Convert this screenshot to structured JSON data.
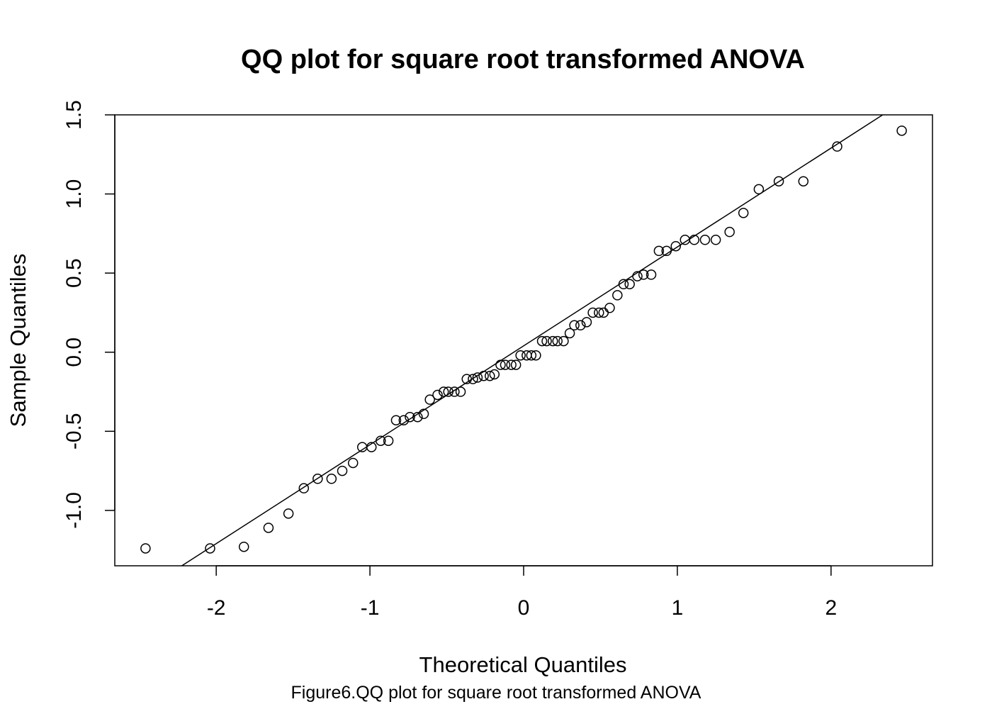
{
  "chart_data": {
    "type": "scatter",
    "title": "QQ plot for square root transformed ANOVA",
    "xlabel": "Theoretical Quantiles",
    "ylabel": "Sample Quantiles",
    "xlim": [
      -2.66,
      2.66
    ],
    "ylim": [
      -1.35,
      1.5
    ],
    "x_ticks": [
      -2,
      -1,
      0,
      1,
      2
    ],
    "x_tick_labels": [
      "-2",
      "-1",
      "0",
      "1",
      "2"
    ],
    "y_ticks": [
      -1.0,
      -0.5,
      0.0,
      0.5,
      1.0,
      1.5
    ],
    "y_tick_labels": [
      "-1.0",
      "-0.5",
      "0.0",
      "0.5",
      "1.0",
      "1.5"
    ],
    "grid": false,
    "legend": "none",
    "reference_line": {
      "slope": 0.625,
      "intercept": 0.04
    },
    "points": [
      [
        -2.46,
        -1.24
      ],
      [
        -2.04,
        -1.24
      ],
      [
        -1.82,
        -1.23
      ],
      [
        -1.66,
        -1.11
      ],
      [
        -1.53,
        -1.02
      ],
      [
        -1.43,
        -0.86
      ],
      [
        -1.34,
        -0.8
      ],
      [
        -1.25,
        -0.8
      ],
      [
        -1.18,
        -0.75
      ],
      [
        -1.11,
        -0.7
      ],
      [
        -1.05,
        -0.6
      ],
      [
        -0.99,
        -0.6
      ],
      [
        -0.93,
        -0.56
      ],
      [
        -0.88,
        -0.56
      ],
      [
        -0.83,
        -0.43
      ],
      [
        -0.78,
        -0.43
      ],
      [
        -0.74,
        -0.41
      ],
      [
        -0.69,
        -0.41
      ],
      [
        -0.65,
        -0.39
      ],
      [
        -0.61,
        -0.3
      ],
      [
        -0.56,
        -0.27
      ],
      [
        -0.52,
        -0.25
      ],
      [
        -0.49,
        -0.25
      ],
      [
        -0.45,
        -0.25
      ],
      [
        -0.41,
        -0.25
      ],
      [
        -0.37,
        -0.17
      ],
      [
        -0.33,
        -0.17
      ],
      [
        -0.3,
        -0.16
      ],
      [
        -0.26,
        -0.15
      ],
      [
        -0.22,
        -0.15
      ],
      [
        -0.19,
        -0.14
      ],
      [
        -0.15,
        -0.08
      ],
      [
        -0.12,
        -0.08
      ],
      [
        -0.08,
        -0.08
      ],
      [
        -0.05,
        -0.08
      ],
      [
        -0.02,
        -0.02
      ],
      [
        0.02,
        -0.02
      ],
      [
        0.05,
        -0.02
      ],
      [
        0.08,
        -0.02
      ],
      [
        0.12,
        0.07
      ],
      [
        0.15,
        0.07
      ],
      [
        0.19,
        0.07
      ],
      [
        0.22,
        0.07
      ],
      [
        0.26,
        0.07
      ],
      [
        0.3,
        0.12
      ],
      [
        0.33,
        0.17
      ],
      [
        0.37,
        0.17
      ],
      [
        0.41,
        0.19
      ],
      [
        0.45,
        0.25
      ],
      [
        0.49,
        0.25
      ],
      [
        0.52,
        0.25
      ],
      [
        0.56,
        0.28
      ],
      [
        0.61,
        0.36
      ],
      [
        0.65,
        0.43
      ],
      [
        0.69,
        0.43
      ],
      [
        0.74,
        0.48
      ],
      [
        0.78,
        0.49
      ],
      [
        0.83,
        0.49
      ],
      [
        0.88,
        0.64
      ],
      [
        0.93,
        0.64
      ],
      [
        0.99,
        0.67
      ],
      [
        1.05,
        0.71
      ],
      [
        1.11,
        0.71
      ],
      [
        1.18,
        0.71
      ],
      [
        1.25,
        0.71
      ],
      [
        1.34,
        0.76
      ],
      [
        1.43,
        0.88
      ],
      [
        1.53,
        1.03
      ],
      [
        1.66,
        1.08
      ],
      [
        1.82,
        1.08
      ],
      [
        2.04,
        1.3
      ],
      [
        2.46,
        1.4
      ]
    ]
  },
  "caption": "Figure6.QQ plot for square root transformed ANOVA"
}
